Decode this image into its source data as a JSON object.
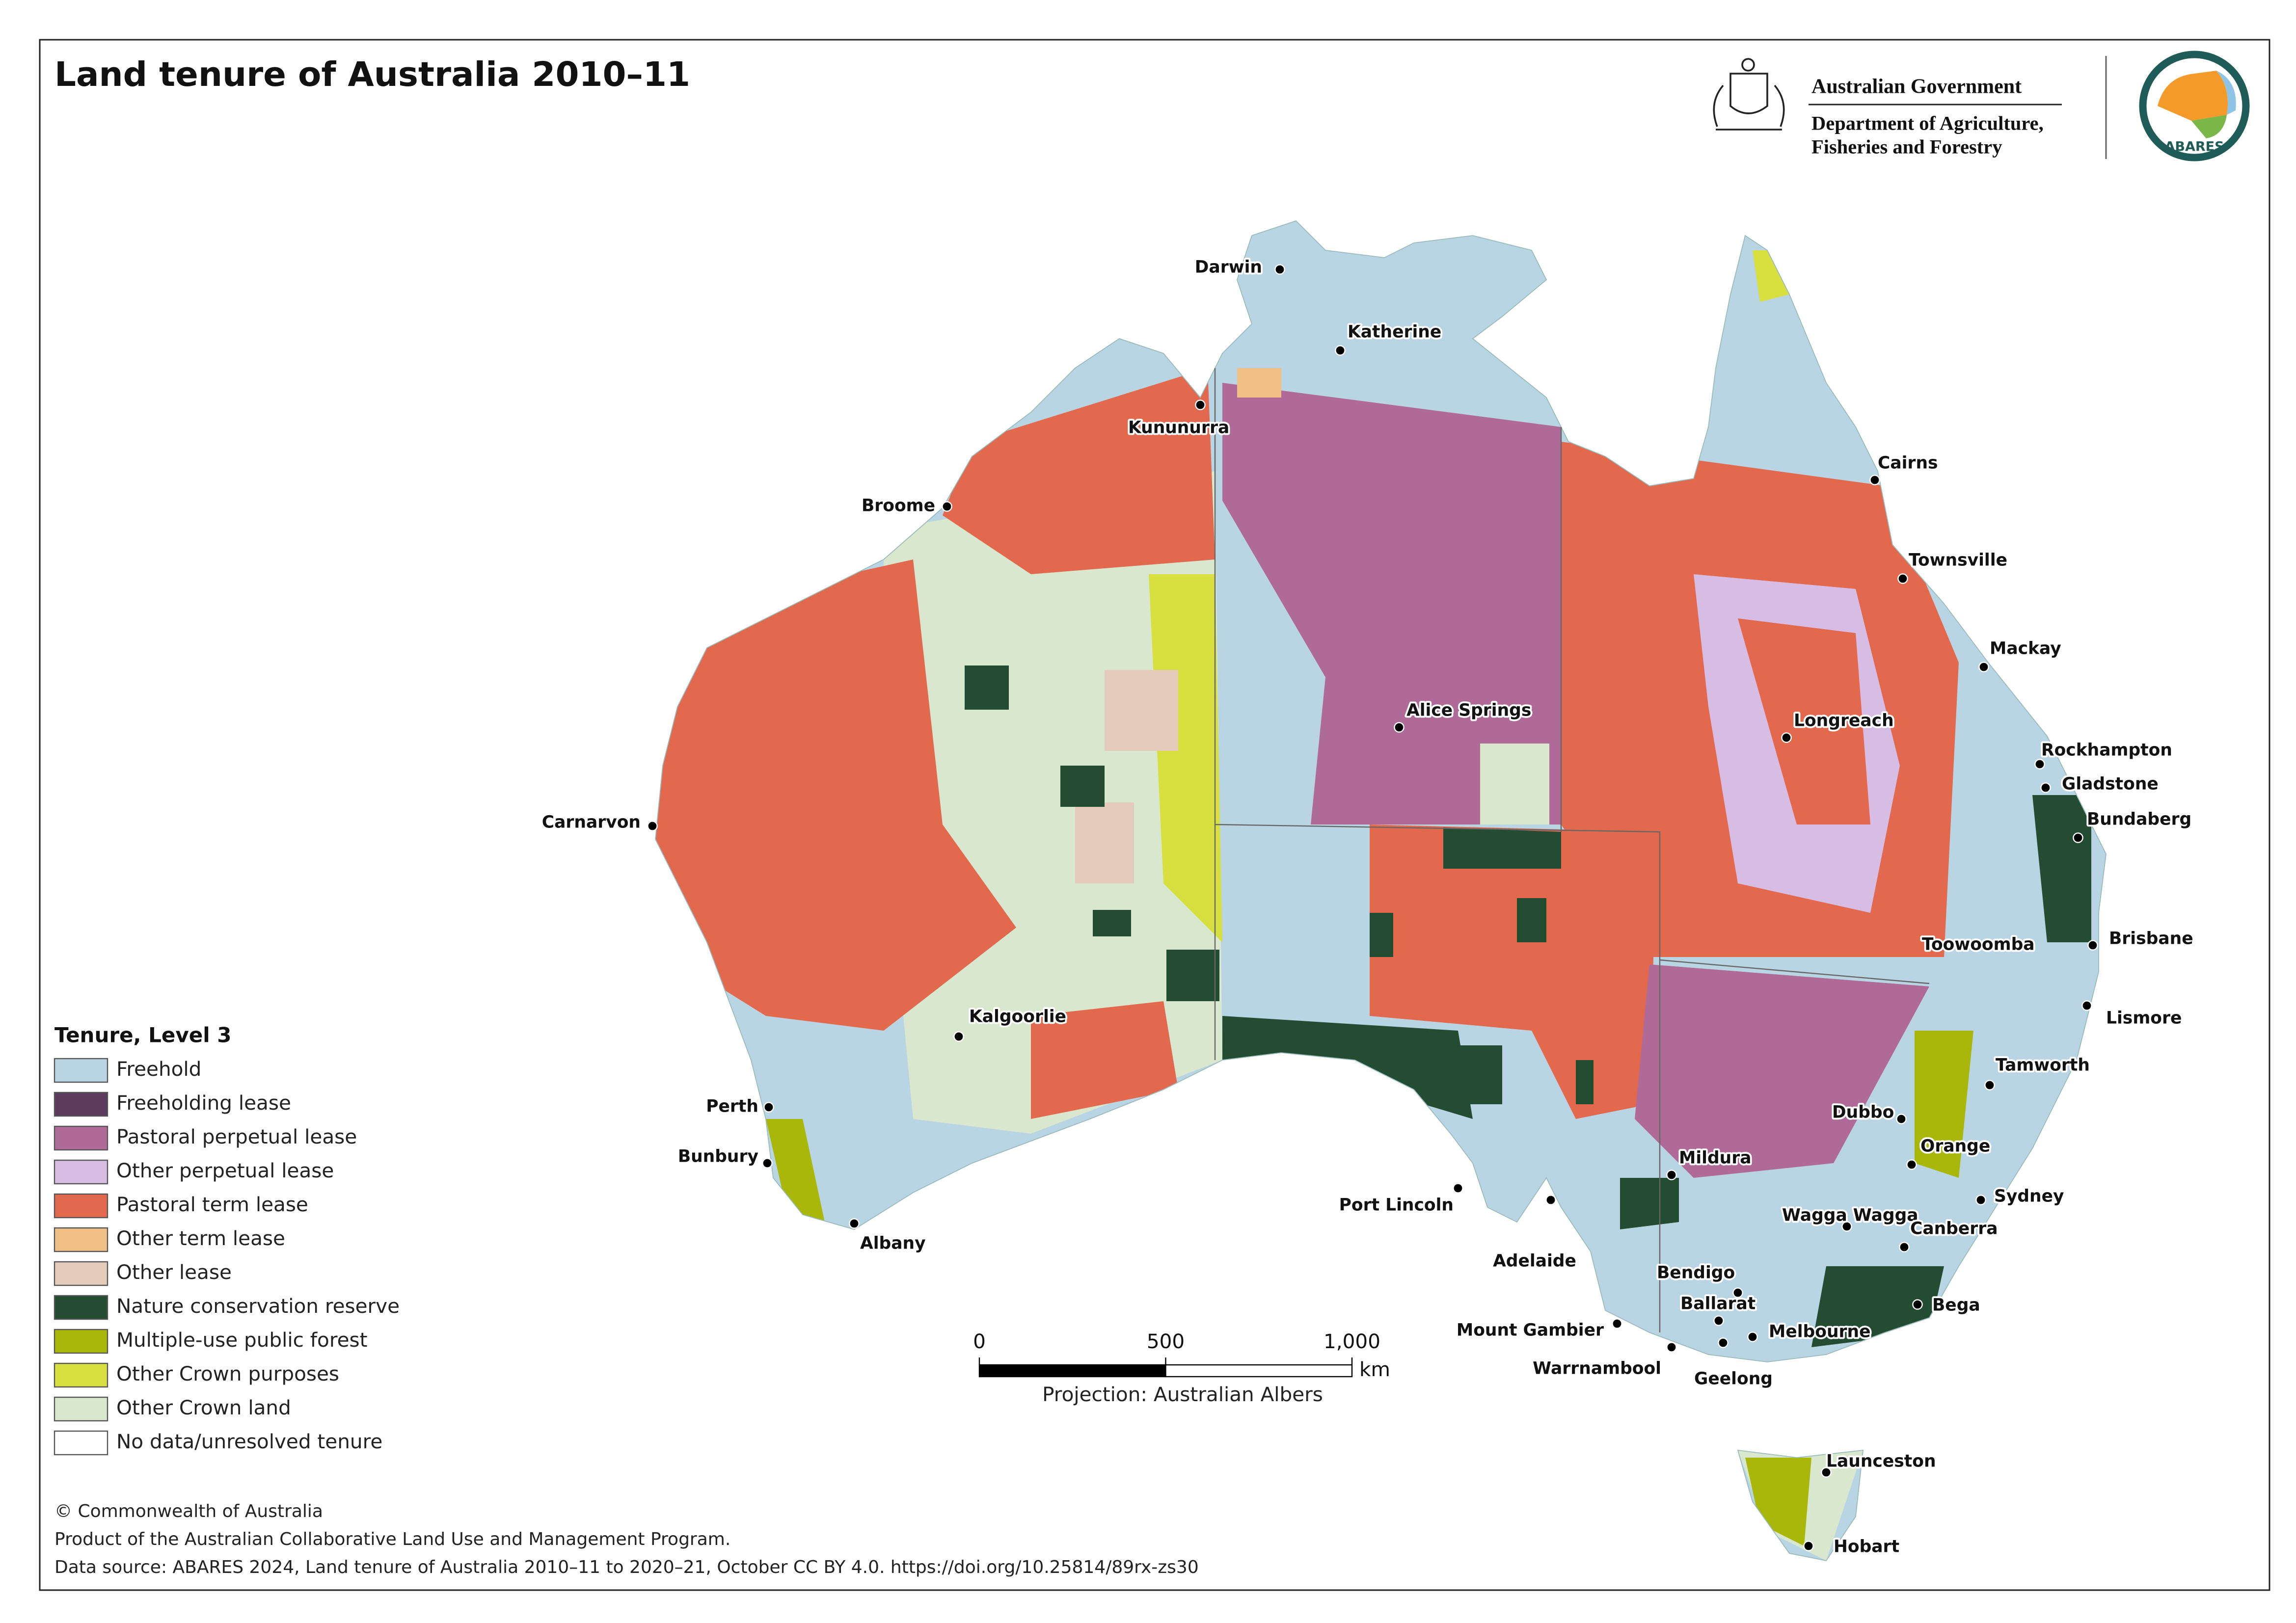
{
  "header": {
    "title": "Land tenure of Australia 2010–11",
    "government": "Australian Government",
    "department": [
      "Department of Agriculture,",
      "Fisheries and Forestry"
    ],
    "logo": "ABARES"
  },
  "legend": {
    "title": "Tenure, Level 3",
    "items": [
      {
        "label": "Freehold",
        "color": "#b9d5e3"
      },
      {
        "label": "Freeholding lease",
        "color": "#5b3a5c"
      },
      {
        "label": "Pastoral perpetual lease",
        "color": "#b06a97"
      },
      {
        "label": "Other perpetual lease",
        "color": "#d7bde3"
      },
      {
        "label": "Pastoral term lease",
        "color": "#e2684e"
      },
      {
        "label": "Other term lease",
        "color": "#efbf86"
      },
      {
        "label": "Other lease",
        "color": "#e5cbba"
      },
      {
        "label": "Nature conservation reserve",
        "color": "#244c33"
      },
      {
        "label": "Multiple-use public forest",
        "color": "#a9b70b"
      },
      {
        "label": "Other Crown purposes",
        "color": "#d8e040"
      },
      {
        "label": "Other Crown land",
        "color": "#d9e7cf"
      },
      {
        "label": "No data/unresolved tenure",
        "color": "#ffffff"
      }
    ]
  },
  "places": [
    "Darwin",
    "Katherine",
    "Kununurra",
    "Broome",
    "Carnarvon",
    "Perth",
    "Bunbury",
    "Albany",
    "Kalgoorlie",
    "Alice Springs",
    "Port Lincoln",
    "Adelaide",
    "Mount Gambier",
    "Warrnambool",
    "Geelong",
    "Ballarat",
    "Bendigo",
    "Melbourne",
    "Mildura",
    "Cairns",
    "Townsville",
    "Mackay",
    "Longreach",
    "Rockhampton",
    "Gladstone",
    "Bundaberg",
    "Toowoomba",
    "Brisbane",
    "Lismore",
    "Tamworth",
    "Dubbo",
    "Orange",
    "Sydney",
    "Wagga Wagga",
    "Canberra",
    "Bega",
    "Launceston",
    "Hobart"
  ],
  "scale_bar": {
    "ticks": [
      0,
      500,
      {
        "value": 1000,
        "label": "1,000"
      }
    ],
    "unit": "km"
  },
  "projection": "Projection: Australian Albers",
  "footer": [
    "© Commonwealth of Australia",
    "Product of the Australian Collaborative Land Use and Management Program.",
    "Data source: ABARES 2024, Land tenure of Australia 2010–11 to 2020–21, October CC BY 4.0. https://doi.org/10.25814/89rx-zs30"
  ]
}
